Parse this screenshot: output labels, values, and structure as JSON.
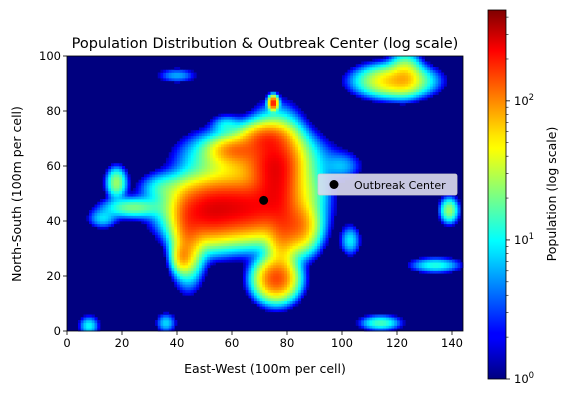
{
  "chart_data": {
    "type": "heatmap",
    "title": "Population Distribution & Outbreak Center (log scale)",
    "xlabel": "East-West (100m per cell)",
    "ylabel": "North-South (100m per cell)",
    "xlim": [
      0,
      144
    ],
    "ylim": [
      0,
      100
    ],
    "x_ticks": [
      "0",
      "20",
      "40",
      "60",
      "80",
      "100",
      "120",
      "140"
    ],
    "y_ticks": [
      "0",
      "20",
      "40",
      "60",
      "80",
      "100"
    ],
    "colormap": "jet",
    "log_scale": true,
    "grid": false,
    "colorbar": {
      "label": "Population (log scale)",
      "range": [
        1,
        450
      ],
      "ticks": [
        {
          "base": "10",
          "exp": "0",
          "value": 1
        },
        {
          "base": "10",
          "exp": "1",
          "value": 10
        },
        {
          "base": "10",
          "exp": "2",
          "value": 100
        }
      ]
    },
    "outbreak_center": {
      "x": 71.5,
      "y": 47.5,
      "color": "#000000"
    },
    "legend": {
      "position": "center-right",
      "entries": [
        {
          "label": "Outbreak Center",
          "marker": "circle",
          "color": "#000000"
        }
      ]
    },
    "clusters": [
      {
        "x": 62,
        "y": 45,
        "sx": 11,
        "sy": 6,
        "peak": 220
      },
      {
        "x": 76,
        "y": 57,
        "sx": 5,
        "sy": 9,
        "peak": 200
      },
      {
        "x": 68,
        "y": 63,
        "sx": 11,
        "sy": 5,
        "peak": 70
      },
      {
        "x": 50,
        "y": 43,
        "sx": 6,
        "sy": 6,
        "peak": 110
      },
      {
        "x": 44,
        "y": 35,
        "sx": 3,
        "sy": 8,
        "peak": 70
      },
      {
        "x": 42,
        "y": 27,
        "sx": 2,
        "sy": 3,
        "peak": 50
      },
      {
        "x": 84,
        "y": 38,
        "sx": 4,
        "sy": 5,
        "peak": 90
      },
      {
        "x": 78,
        "y": 35,
        "sx": 3,
        "sy": 8,
        "peak": 60
      },
      {
        "x": 76,
        "y": 19,
        "sx": 4,
        "sy": 4,
        "peak": 130
      },
      {
        "x": 72,
        "y": 70,
        "sx": 5,
        "sy": 3,
        "peak": 90
      },
      {
        "x": 61,
        "y": 66,
        "sx": 5,
        "sy": 2.5,
        "peak": 60
      },
      {
        "x": 24,
        "y": 45,
        "sx": 6,
        "sy": 2,
        "peak": 20
      },
      {
        "x": 18,
        "y": 54,
        "sx": 2,
        "sy": 3,
        "peak": 25
      },
      {
        "x": 36,
        "y": 52,
        "sx": 5,
        "sy": 3,
        "peak": 12
      },
      {
        "x": 88,
        "y": 52,
        "sx": 4,
        "sy": 5,
        "peak": 14
      },
      {
        "x": 119,
        "y": 91,
        "sx": 7,
        "sy": 3,
        "peak": 60
      },
      {
        "x": 123,
        "y": 94,
        "sx": 3,
        "sy": 4,
        "peak": 30
      },
      {
        "x": 139,
        "y": 44,
        "sx": 1.8,
        "sy": 2.5,
        "peak": 25
      },
      {
        "x": 134,
        "y": 24,
        "sx": 5,
        "sy": 1.5,
        "peak": 12
      },
      {
        "x": 114,
        "y": 3,
        "sx": 4,
        "sy": 1.5,
        "peak": 15
      },
      {
        "x": 103,
        "y": 33,
        "sx": 2,
        "sy": 3,
        "peak": 9
      },
      {
        "x": 13,
        "y": 41,
        "sx": 3,
        "sy": 2,
        "peak": 8
      },
      {
        "x": 8,
        "y": 2,
        "sx": 2,
        "sy": 2,
        "peak": 10
      },
      {
        "x": 36,
        "y": 3,
        "sx": 2,
        "sy": 2,
        "peak": 8
      },
      {
        "x": 75,
        "y": 83,
        "sx": 0.9,
        "sy": 1.3,
        "peak": 200
      },
      {
        "x": 58,
        "y": 75,
        "sx": 3,
        "sy": 2,
        "peak": 8
      },
      {
        "x": 40,
        "y": 93,
        "sx": 4,
        "sy": 1.5,
        "peak": 6
      },
      {
        "x": 100,
        "y": 60,
        "sx": 4,
        "sy": 3,
        "peak": 6
      }
    ]
  }
}
